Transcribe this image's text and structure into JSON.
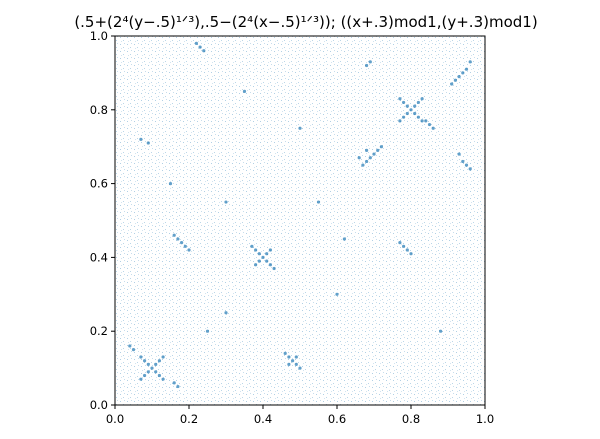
{
  "chart_data": {
    "type": "scatter",
    "title": "(.5+(2⁴(y−.5)¹ᐟ³),.5−(2⁴(x−.5)¹ᐟ³)); ((x+.3)mod1,(y+.3)mod1)",
    "xlabel": "",
    "ylabel": "",
    "xlim": [
      0,
      1
    ],
    "ylim": [
      0,
      1
    ],
    "xticks": [
      "0.0",
      "0.2",
      "0.4",
      "0.6",
      "0.8",
      "1.0"
    ],
    "yticks": [
      "0.0",
      "0.2",
      "0.4",
      "0.6",
      "0.8",
      "1.0"
    ],
    "grid": false,
    "color": "#1f77b4",
    "note_distribution": "dense near-uniform cloud of points with X-shaped clusters",
    "points": [
      [
        0.1,
        0.1
      ],
      [
        0.09,
        0.11
      ],
      [
        0.11,
        0.09
      ],
      [
        0.08,
        0.12
      ],
      [
        0.12,
        0.08
      ],
      [
        0.09,
        0.09
      ],
      [
        0.11,
        0.11
      ],
      [
        0.08,
        0.08
      ],
      [
        0.12,
        0.12
      ],
      [
        0.07,
        0.13
      ],
      [
        0.13,
        0.07
      ],
      [
        0.07,
        0.07
      ],
      [
        0.13,
        0.13
      ],
      [
        0.4,
        0.4
      ],
      [
        0.39,
        0.41
      ],
      [
        0.41,
        0.39
      ],
      [
        0.38,
        0.42
      ],
      [
        0.42,
        0.38
      ],
      [
        0.39,
        0.39
      ],
      [
        0.41,
        0.41
      ],
      [
        0.38,
        0.38
      ],
      [
        0.42,
        0.42
      ],
      [
        0.37,
        0.43
      ],
      [
        0.43,
        0.37
      ],
      [
        0.8,
        0.8
      ],
      [
        0.79,
        0.81
      ],
      [
        0.81,
        0.79
      ],
      [
        0.78,
        0.82
      ],
      [
        0.82,
        0.78
      ],
      [
        0.79,
        0.79
      ],
      [
        0.81,
        0.81
      ],
      [
        0.78,
        0.78
      ],
      [
        0.82,
        0.82
      ],
      [
        0.77,
        0.83
      ],
      [
        0.83,
        0.77
      ],
      [
        0.77,
        0.77
      ],
      [
        0.83,
        0.83
      ],
      [
        0.48,
        0.12
      ],
      [
        0.47,
        0.13
      ],
      [
        0.49,
        0.11
      ],
      [
        0.46,
        0.14
      ],
      [
        0.5,
        0.1
      ],
      [
        0.47,
        0.11
      ],
      [
        0.49,
        0.13
      ],
      [
        0.18,
        0.44
      ],
      [
        0.17,
        0.45
      ],
      [
        0.19,
        0.43
      ],
      [
        0.16,
        0.46
      ],
      [
        0.2,
        0.42
      ],
      [
        0.7,
        0.68
      ],
      [
        0.69,
        0.67
      ],
      [
        0.68,
        0.66
      ],
      [
        0.67,
        0.65
      ],
      [
        0.71,
        0.69
      ],
      [
        0.72,
        0.7
      ],
      [
        0.66,
        0.67
      ],
      [
        0.68,
        0.69
      ],
      [
        0.78,
        0.43
      ],
      [
        0.79,
        0.42
      ],
      [
        0.77,
        0.44
      ],
      [
        0.8,
        0.41
      ],
      [
        0.92,
        0.88
      ],
      [
        0.93,
        0.89
      ],
      [
        0.91,
        0.87
      ],
      [
        0.94,
        0.9
      ],
      [
        0.95,
        0.91
      ],
      [
        0.96,
        0.93
      ],
      [
        0.95,
        0.65
      ],
      [
        0.94,
        0.66
      ],
      [
        0.96,
        0.64
      ],
      [
        0.93,
        0.68
      ],
      [
        0.85,
        0.76
      ],
      [
        0.86,
        0.75
      ],
      [
        0.84,
        0.77
      ],
      [
        0.16,
        0.06
      ],
      [
        0.17,
        0.05
      ],
      [
        0.05,
        0.15
      ],
      [
        0.04,
        0.16
      ],
      [
        0.22,
        0.98
      ],
      [
        0.23,
        0.97
      ],
      [
        0.24,
        0.96
      ],
      [
        0.68,
        0.92
      ],
      [
        0.69,
        0.93
      ],
      [
        0.07,
        0.72
      ],
      [
        0.09,
        0.71
      ],
      [
        0.3,
        0.25
      ],
      [
        0.25,
        0.2
      ],
      [
        0.55,
        0.55
      ],
      [
        0.6,
        0.3
      ],
      [
        0.35,
        0.85
      ],
      [
        0.15,
        0.6
      ],
      [
        0.88,
        0.2
      ],
      [
        0.5,
        0.75
      ],
      [
        0.62,
        0.45
      ],
      [
        0.3,
        0.55
      ]
    ]
  }
}
